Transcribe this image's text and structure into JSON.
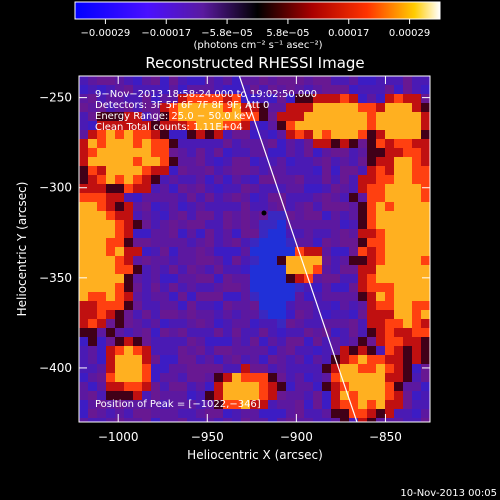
{
  "chart_data": {
    "type": "heatmap",
    "title": "Reconstructed RHESSI Image",
    "xlabel": "Heliocentric X (arcsec)",
    "ylabel": "Heliocentric Y (arcsec)",
    "xlim": [
      -1022,
      -825
    ],
    "ylim": [
      -430,
      -238
    ],
    "xticks": [
      -1000,
      -950,
      -900,
      -850
    ],
    "yticks": [
      -250,
      -300,
      -350,
      -400
    ],
    "xtick_labels": [
      "−1000",
      "−950",
      "−900",
      "−850"
    ],
    "ytick_labels": [
      "−250",
      "−300",
      "−350",
      "−400"
    ],
    "colorbar": {
      "range": [
        -0.00029,
        0.00029
      ],
      "tick_labels": [
        "−0.00029",
        "−0.00017",
        "−5.8e−05",
        "5.8e−05",
        "0.00017",
        "0.00029"
      ],
      "units": "(photons cm⁻² s⁻¹ asec⁻²)",
      "colors": [
        "#0000ff",
        "#6a1bd6",
        "#000000",
        "#aa0000",
        "#ff3300",
        "#ffcc00",
        "#ffffff"
      ]
    },
    "info_lines": [
      "9−Nov−2013 18:58:24.000 to 19:02:50.000",
      "Detectors: 3F 5F 6F 7F 8F 9F, Att 0",
      "Energy Range: 25.0 − 50.0 keV",
      "Clean     Total counts: 1.11E+04"
    ],
    "peak_label": "Position of Peak = [−1022,−346]",
    "peak": [
      -1022,
      -346
    ],
    "limb_line": [
      [
        -932,
        -238
      ],
      [
        -866,
        -430
      ]
    ]
  },
  "footer": {
    "timestamp": "10-Nov-2013 00:05"
  }
}
